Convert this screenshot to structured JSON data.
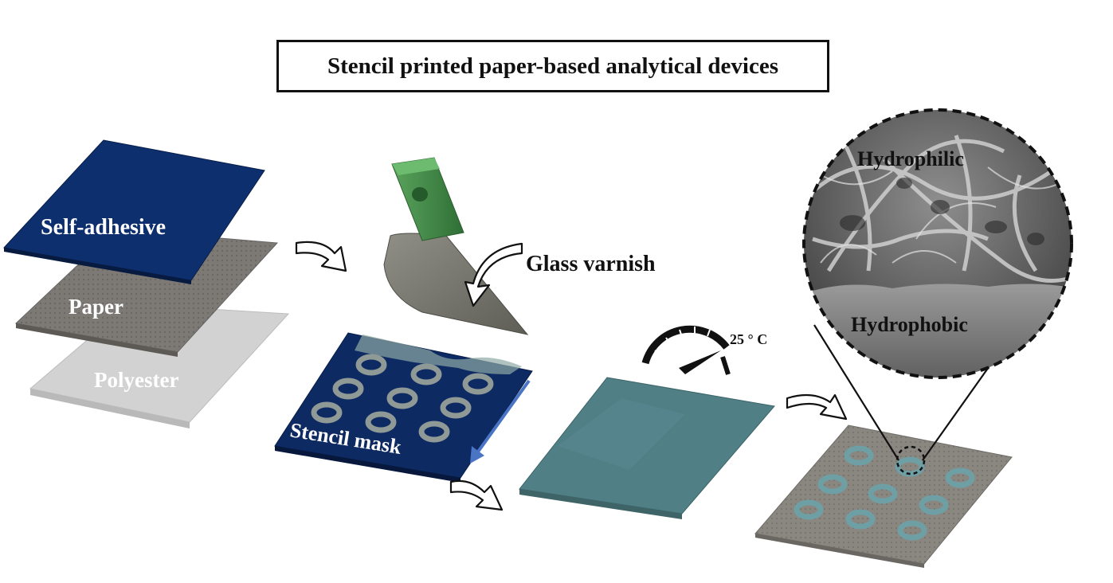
{
  "figure": {
    "title": "Stencil printed paper-based analytical devices",
    "layers": {
      "self_adhesive": "Self-adhesive",
      "paper": "Paper",
      "polyester": "Polyester"
    },
    "glass_varnish": "Glass varnish",
    "stencil_mask": "Stencil mask",
    "temperature": "25 ° C",
    "zoom": {
      "hydrophilic": "Hydrophilic",
      "hydrophobic": "Hydrophobic"
    },
    "colors": {
      "self_adhesive": "#0e2f6e",
      "paper": "#7e7b76",
      "polyester": "#cfcfcf",
      "stencil_mask": "#0d2a63",
      "squeegee_handle": "#3e8f45",
      "varnished_sheet": "#4f7f85",
      "arrow_blue": "#4a74c4",
      "ring": "#6e9fa4"
    }
  }
}
